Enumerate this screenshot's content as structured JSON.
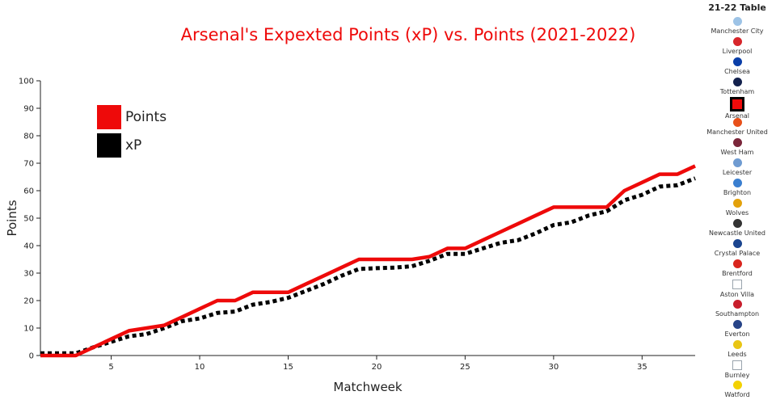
{
  "chart_data": {
    "type": "line",
    "title": "Arsenal's Expexted Points (xP) vs. Points (2021-2022)",
    "xlabel": "Matchweek",
    "ylabel": "Points",
    "xlim": [
      1,
      38
    ],
    "ylim": [
      0,
      100
    ],
    "x_ticks": [
      5,
      10,
      15,
      20,
      25,
      30,
      35
    ],
    "y_ticks": [
      0,
      10,
      20,
      30,
      40,
      50,
      60,
      70,
      80,
      90,
      100
    ],
    "legend_position": "top-left",
    "x": [
      1,
      2,
      3,
      4,
      5,
      6,
      7,
      8,
      9,
      10,
      11,
      12,
      13,
      14,
      15,
      16,
      17,
      18,
      19,
      20,
      21,
      22,
      23,
      24,
      25,
      26,
      27,
      28,
      29,
      30,
      31,
      32,
      33,
      34,
      35,
      36,
      37,
      38
    ],
    "series": [
      {
        "name": "Points",
        "color": "#ee0a0a",
        "style": "solid",
        "values": [
          0,
          0,
          0,
          3,
          6,
          9,
          10,
          11,
          14,
          17,
          20,
          20,
          23,
          23,
          23,
          26,
          29,
          32,
          35,
          35,
          35,
          35,
          36,
          39,
          39,
          42,
          45,
          48,
          51,
          54,
          54,
          54,
          54,
          60,
          63,
          66,
          66,
          69
        ]
      },
      {
        "name": "xP",
        "color": "#000000",
        "style": "dotted",
        "values": [
          0.8,
          0.8,
          0.8,
          3,
          5,
          7,
          7.8,
          10,
          12.5,
          13.5,
          15.5,
          16,
          18.5,
          19.5,
          21,
          23.5,
          26,
          29,
          31.5,
          31.8,
          32,
          32.5,
          34.5,
          37,
          37,
          39,
          41,
          42,
          44.5,
          47.5,
          48.5,
          51,
          52.5,
          56.5,
          58.5,
          61.5,
          62,
          64.5
        ]
      }
    ]
  },
  "sidebar": {
    "title": "21-22 Table",
    "teams": [
      {
        "name": "Manchester City",
        "crest_color": "#9dc3e6"
      },
      {
        "name": "Liverpool",
        "crest_color": "#d7262b"
      },
      {
        "name": "Chelsea",
        "crest_color": "#0a3ea8"
      },
      {
        "name": "Tottenham",
        "crest_color": "#13214d"
      },
      {
        "name": "Arsenal",
        "crest_color": "#ee0a0a",
        "selected": true
      },
      {
        "name": "Manchester United",
        "crest_color": "#e8501a"
      },
      {
        "name": "West Ham",
        "crest_color": "#7a263a"
      },
      {
        "name": "Leicester",
        "crest_color": "#6f9bd1"
      },
      {
        "name": "Brighton",
        "crest_color": "#3a7fd0"
      },
      {
        "name": "Wolves",
        "crest_color": "#e3a10b"
      },
      {
        "name": "Newcastle United",
        "crest_color": "#333333"
      },
      {
        "name": "Crystal Palace",
        "crest_color": "#1b458f"
      },
      {
        "name": "Brentford",
        "crest_color": "#d9251d"
      },
      {
        "name": "Aston Villa",
        "crest_color": "#ffffff",
        "broken": true
      },
      {
        "name": "Southampton",
        "crest_color": "#c81e2c"
      },
      {
        "name": "Everton",
        "crest_color": "#274488"
      },
      {
        "name": "Leeds",
        "crest_color": "#e9c514"
      },
      {
        "name": "Burnley",
        "crest_color": "#ffffff",
        "broken": true
      },
      {
        "name": "Watford",
        "crest_color": "#f3d100"
      }
    ]
  }
}
